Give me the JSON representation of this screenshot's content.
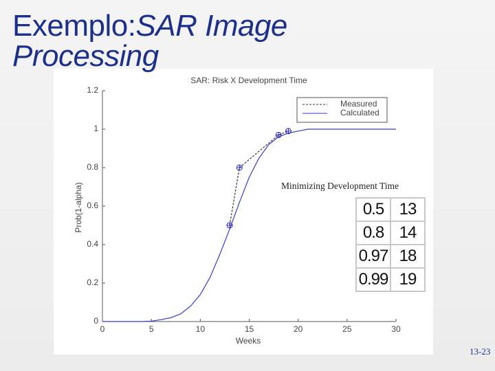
{
  "title": {
    "prefix": "Exemplo:",
    "text": "SAR Image Processing"
  },
  "chart_data": {
    "type": "line",
    "title": "SAR: Risk X Development Time",
    "xlabel": "Weeks",
    "ylabel": "Prob(1-alpha)",
    "xlim": [
      0,
      30
    ],
    "ylim": [
      0,
      1.2
    ],
    "xticks": [
      0,
      5,
      10,
      15,
      20,
      25,
      30
    ],
    "yticks": [
      0,
      0.2,
      0.4,
      0.6,
      0.8,
      1,
      1.2
    ],
    "legend": "upper right",
    "series": [
      {
        "name": "Measured",
        "color": "#333333",
        "dashed": true,
        "marker_color": "#2a2ab8",
        "markers": true,
        "x": [
          13,
          14,
          18,
          19
        ],
        "values": [
          0.5,
          0.8,
          0.97,
          0.99
        ]
      },
      {
        "name": "Calculated",
        "color": "#3a3ac8",
        "dashed": false,
        "markers": false,
        "x": [
          0,
          1,
          2,
          3,
          4,
          5,
          6,
          7,
          8,
          9,
          10,
          11,
          12,
          13,
          14,
          15,
          16,
          17,
          18,
          19,
          20,
          21,
          22,
          23,
          24,
          25,
          26,
          27,
          28,
          29,
          30
        ],
        "values": [
          0,
          0,
          0,
          0,
          0,
          0.002,
          0.01,
          0.02,
          0.04,
          0.08,
          0.14,
          0.23,
          0.35,
          0.48,
          0.62,
          0.75,
          0.85,
          0.92,
          0.96,
          0.98,
          0.99,
          1,
          1,
          1,
          1,
          1,
          1,
          1,
          1,
          1,
          1
        ]
      }
    ]
  },
  "annotation": "Minimizing Development Time",
  "table": {
    "rows": [
      [
        0.5,
        13
      ],
      [
        0.8,
        14
      ],
      [
        0.97,
        18
      ],
      [
        0.99,
        19
      ]
    ]
  },
  "page_number": "13-23"
}
